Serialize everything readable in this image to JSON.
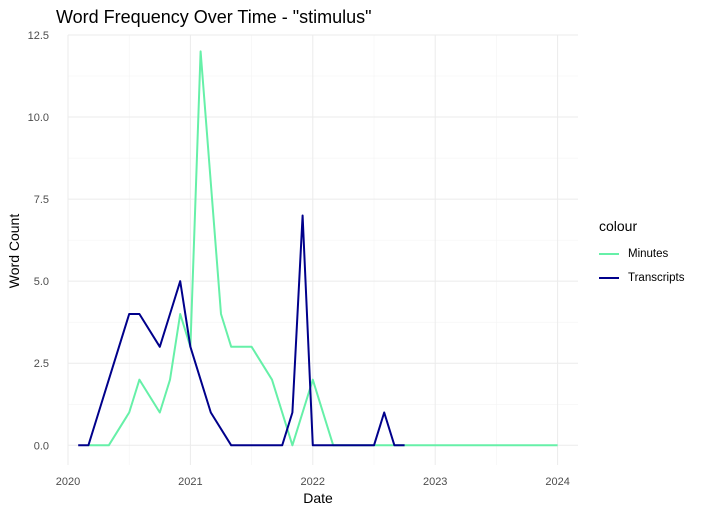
{
  "chart_data": {
    "type": "line",
    "title": "Word Frequency Over Time - \"stimulus\"",
    "xlabel": "Date",
    "ylabel": "Word Count",
    "x_ticks": [
      "2020",
      "2021",
      "2022",
      "2023",
      "2024"
    ],
    "y_ticks": [
      "0.0",
      "2.5",
      "5.0",
      "7.5",
      "10.0",
      "12.5"
    ],
    "xlim": [
      "2020-01-01",
      "2024-03-01"
    ],
    "ylim": [
      -0.6,
      12.5
    ],
    "grid": true,
    "legend_title": "colour",
    "legend_position": "right",
    "series": [
      {
        "name": "Minutes",
        "color": "#66F0A8",
        "x": [
          "2020-03-01",
          "2020-05-01",
          "2020-07-01",
          "2020-08-01",
          "2020-10-01",
          "2020-11-01",
          "2020-12-01",
          "2021-01-01",
          "2021-02-01",
          "2021-04-01",
          "2021-05-01",
          "2021-07-01",
          "2021-09-01",
          "2021-11-01",
          "2022-01-01",
          "2022-03-01",
          "2024-01-01"
        ],
        "values": [
          0,
          0,
          1,
          2,
          1,
          2,
          4,
          3,
          12,
          4,
          3,
          3,
          2,
          0,
          2,
          0,
          0
        ]
      },
      {
        "name": "Transcripts",
        "color": "#00008B",
        "x": [
          "2020-02-01",
          "2020-03-01",
          "2020-04-01",
          "2020-06-01",
          "2020-07-01",
          "2020-08-01",
          "2020-10-01",
          "2020-11-01",
          "2020-12-01",
          "2021-01-01",
          "2021-02-01",
          "2021-03-01",
          "2021-05-01",
          "2021-06-01",
          "2021-07-01",
          "2021-08-01",
          "2021-09-01",
          "2021-10-01",
          "2021-11-01",
          "2021-12-01",
          "2022-01-01",
          "2022-02-01",
          "2022-03-01",
          "2022-06-01",
          "2022-07-01",
          "2022-08-01",
          "2022-09-01",
          "2022-10-01"
        ],
        "values": [
          0,
          0,
          1,
          3,
          4,
          4,
          3,
          4,
          5,
          3,
          2,
          1,
          0,
          0,
          0,
          0,
          0,
          0,
          1,
          7,
          0,
          0,
          0,
          0,
          0,
          1,
          0,
          0
        ]
      }
    ]
  }
}
